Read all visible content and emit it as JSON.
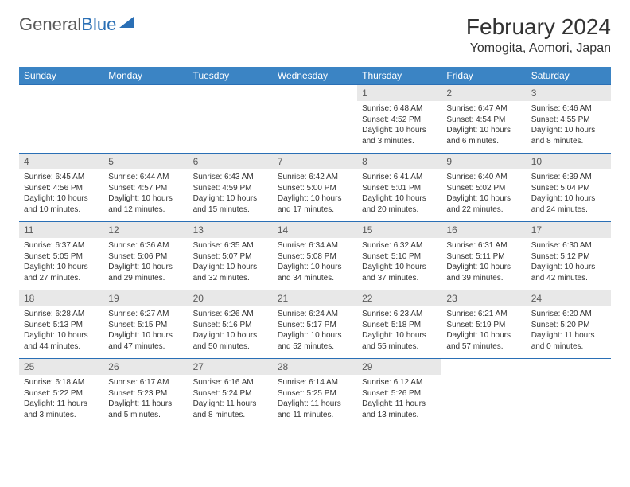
{
  "logo": {
    "text1": "General",
    "text2": "Blue"
  },
  "title": "February 2024",
  "location": "Yomogita, Aomori, Japan",
  "colors": {
    "header_bg": "#3b84c4",
    "header_text": "#ffffff",
    "week_border": "#2a6fb5",
    "daynum_bg": "#e8e8e8",
    "daynum_text": "#5a5a5a",
    "body_text": "#333333"
  },
  "day_headers": [
    "Sunday",
    "Monday",
    "Tuesday",
    "Wednesday",
    "Thursday",
    "Friday",
    "Saturday"
  ],
  "weeks": [
    [
      null,
      null,
      null,
      null,
      {
        "n": "1",
        "sunrise": "Sunrise: 6:48 AM",
        "sunset": "Sunset: 4:52 PM",
        "daylight": "Daylight: 10 hours and 3 minutes."
      },
      {
        "n": "2",
        "sunrise": "Sunrise: 6:47 AM",
        "sunset": "Sunset: 4:54 PM",
        "daylight": "Daylight: 10 hours and 6 minutes."
      },
      {
        "n": "3",
        "sunrise": "Sunrise: 6:46 AM",
        "sunset": "Sunset: 4:55 PM",
        "daylight": "Daylight: 10 hours and 8 minutes."
      }
    ],
    [
      {
        "n": "4",
        "sunrise": "Sunrise: 6:45 AM",
        "sunset": "Sunset: 4:56 PM",
        "daylight": "Daylight: 10 hours and 10 minutes."
      },
      {
        "n": "5",
        "sunrise": "Sunrise: 6:44 AM",
        "sunset": "Sunset: 4:57 PM",
        "daylight": "Daylight: 10 hours and 12 minutes."
      },
      {
        "n": "6",
        "sunrise": "Sunrise: 6:43 AM",
        "sunset": "Sunset: 4:59 PM",
        "daylight": "Daylight: 10 hours and 15 minutes."
      },
      {
        "n": "7",
        "sunrise": "Sunrise: 6:42 AM",
        "sunset": "Sunset: 5:00 PM",
        "daylight": "Daylight: 10 hours and 17 minutes."
      },
      {
        "n": "8",
        "sunrise": "Sunrise: 6:41 AM",
        "sunset": "Sunset: 5:01 PM",
        "daylight": "Daylight: 10 hours and 20 minutes."
      },
      {
        "n": "9",
        "sunrise": "Sunrise: 6:40 AM",
        "sunset": "Sunset: 5:02 PM",
        "daylight": "Daylight: 10 hours and 22 minutes."
      },
      {
        "n": "10",
        "sunrise": "Sunrise: 6:39 AM",
        "sunset": "Sunset: 5:04 PM",
        "daylight": "Daylight: 10 hours and 24 minutes."
      }
    ],
    [
      {
        "n": "11",
        "sunrise": "Sunrise: 6:37 AM",
        "sunset": "Sunset: 5:05 PM",
        "daylight": "Daylight: 10 hours and 27 minutes."
      },
      {
        "n": "12",
        "sunrise": "Sunrise: 6:36 AM",
        "sunset": "Sunset: 5:06 PM",
        "daylight": "Daylight: 10 hours and 29 minutes."
      },
      {
        "n": "13",
        "sunrise": "Sunrise: 6:35 AM",
        "sunset": "Sunset: 5:07 PM",
        "daylight": "Daylight: 10 hours and 32 minutes."
      },
      {
        "n": "14",
        "sunrise": "Sunrise: 6:34 AM",
        "sunset": "Sunset: 5:08 PM",
        "daylight": "Daylight: 10 hours and 34 minutes."
      },
      {
        "n": "15",
        "sunrise": "Sunrise: 6:32 AM",
        "sunset": "Sunset: 5:10 PM",
        "daylight": "Daylight: 10 hours and 37 minutes."
      },
      {
        "n": "16",
        "sunrise": "Sunrise: 6:31 AM",
        "sunset": "Sunset: 5:11 PM",
        "daylight": "Daylight: 10 hours and 39 minutes."
      },
      {
        "n": "17",
        "sunrise": "Sunrise: 6:30 AM",
        "sunset": "Sunset: 5:12 PM",
        "daylight": "Daylight: 10 hours and 42 minutes."
      }
    ],
    [
      {
        "n": "18",
        "sunrise": "Sunrise: 6:28 AM",
        "sunset": "Sunset: 5:13 PM",
        "daylight": "Daylight: 10 hours and 44 minutes."
      },
      {
        "n": "19",
        "sunrise": "Sunrise: 6:27 AM",
        "sunset": "Sunset: 5:15 PM",
        "daylight": "Daylight: 10 hours and 47 minutes."
      },
      {
        "n": "20",
        "sunrise": "Sunrise: 6:26 AM",
        "sunset": "Sunset: 5:16 PM",
        "daylight": "Daylight: 10 hours and 50 minutes."
      },
      {
        "n": "21",
        "sunrise": "Sunrise: 6:24 AM",
        "sunset": "Sunset: 5:17 PM",
        "daylight": "Daylight: 10 hours and 52 minutes."
      },
      {
        "n": "22",
        "sunrise": "Sunrise: 6:23 AM",
        "sunset": "Sunset: 5:18 PM",
        "daylight": "Daylight: 10 hours and 55 minutes."
      },
      {
        "n": "23",
        "sunrise": "Sunrise: 6:21 AM",
        "sunset": "Sunset: 5:19 PM",
        "daylight": "Daylight: 10 hours and 57 minutes."
      },
      {
        "n": "24",
        "sunrise": "Sunrise: 6:20 AM",
        "sunset": "Sunset: 5:20 PM",
        "daylight": "Daylight: 11 hours and 0 minutes."
      }
    ],
    [
      {
        "n": "25",
        "sunrise": "Sunrise: 6:18 AM",
        "sunset": "Sunset: 5:22 PM",
        "daylight": "Daylight: 11 hours and 3 minutes."
      },
      {
        "n": "26",
        "sunrise": "Sunrise: 6:17 AM",
        "sunset": "Sunset: 5:23 PM",
        "daylight": "Daylight: 11 hours and 5 minutes."
      },
      {
        "n": "27",
        "sunrise": "Sunrise: 6:16 AM",
        "sunset": "Sunset: 5:24 PM",
        "daylight": "Daylight: 11 hours and 8 minutes."
      },
      {
        "n": "28",
        "sunrise": "Sunrise: 6:14 AM",
        "sunset": "Sunset: 5:25 PM",
        "daylight": "Daylight: 11 hours and 11 minutes."
      },
      {
        "n": "29",
        "sunrise": "Sunrise: 6:12 AM",
        "sunset": "Sunset: 5:26 PM",
        "daylight": "Daylight: 11 hours and 13 minutes."
      },
      null,
      null
    ]
  ]
}
